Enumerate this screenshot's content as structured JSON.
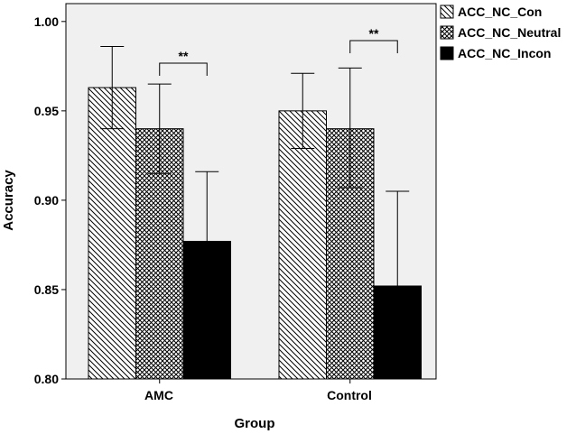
{
  "chart_data": {
    "type": "bar",
    "title": "",
    "xlabel": "Group",
    "ylabel": "Accuracy",
    "ylim": [
      0.8,
      1.01
    ],
    "yticks": [
      "0.80",
      "0.85",
      "0.90",
      "0.95",
      "1.00"
    ],
    "categories": [
      "AMC",
      "Control"
    ],
    "legend_position": "top-right-outside",
    "series": [
      {
        "name": "ACC_NC_Con",
        "pattern": "diagonal-hatch",
        "values": [
          0.963,
          0.95
        ],
        "error_upper": [
          0.986,
          0.971
        ],
        "error_lower": [
          0.94,
          0.929
        ]
      },
      {
        "name": "ACC_NC_Neutral",
        "pattern": "crosshatch",
        "values": [
          0.94,
          0.94
        ],
        "error_upper": [
          0.965,
          0.974
        ],
        "error_lower": [
          0.915,
          0.907
        ]
      },
      {
        "name": "ACC_NC_Incon",
        "pattern": "solid-black",
        "values": [
          0.877,
          0.852
        ],
        "error_upper": [
          0.916,
          0.905
        ],
        "error_lower": [
          0.838,
          0.799
        ]
      }
    ],
    "annotations": [
      {
        "text": "**",
        "category": "AMC",
        "between": [
          "ACC_NC_Neutral",
          "ACC_NC_Incon"
        ]
      },
      {
        "text": "**",
        "category": "Control",
        "between": [
          "ACC_NC_Neutral",
          "ACC_NC_Incon"
        ]
      }
    ],
    "colors": {
      "plot_bg": "#f0f0f0",
      "bar_stroke": "#000000",
      "pattern_fg": "#000000",
      "pattern_bg": "#ffffff"
    }
  }
}
